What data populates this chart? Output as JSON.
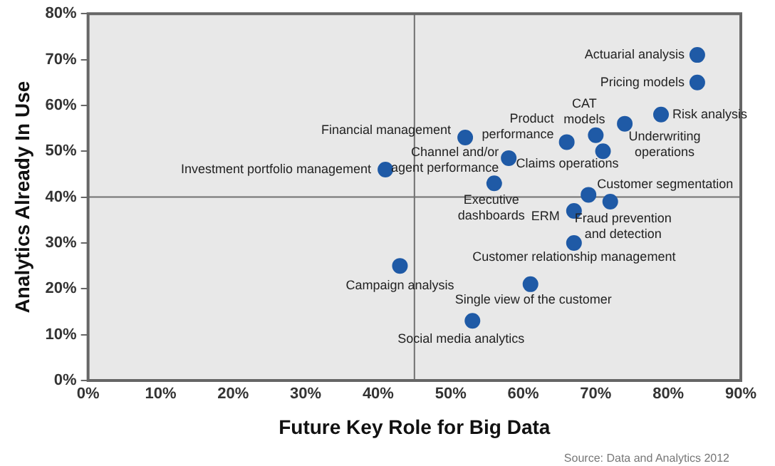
{
  "chart_data": {
    "type": "scatter",
    "xlabel": "Future Key Role for Big Data",
    "ylabel": "Analytics Already In Use",
    "x": [
      84,
      84,
      79,
      70,
      74,
      71,
      66,
      52,
      58,
      56,
      41,
      69,
      72,
      67,
      67,
      43,
      61,
      53
    ],
    "series": [
      {
        "color": "#1f5aa6",
        "values": [
          71,
          65,
          58,
          53.5,
          56,
          50,
          52,
          53,
          48.5,
          43,
          46,
          40.5,
          39,
          37,
          30,
          25,
          21,
          13
        ]
      }
    ],
    "annotations": [
      {
        "text": "Actuarial analysis",
        "x": 84,
        "y": 71
      },
      {
        "text": "Pricing models",
        "x": 84,
        "y": 65
      },
      {
        "text": "Risk analysis",
        "x": 79,
        "y": 58
      },
      {
        "text": "CAT models",
        "x": 70,
        "y": 53.5
      },
      {
        "text": "Underwriting operations",
        "x": 74,
        "y": 56
      },
      {
        "text": "Claims operations",
        "x": 71,
        "y": 50
      },
      {
        "text": "Product performance",
        "x": 66,
        "y": 52
      },
      {
        "text": "Financial management",
        "x": 52,
        "y": 53
      },
      {
        "text": "Channel and/or agent performance",
        "x": 58,
        "y": 48.5
      },
      {
        "text": "Executive dashboards",
        "x": 56,
        "y": 43
      },
      {
        "text": "Investment portfolio management",
        "x": 41,
        "y": 46
      },
      {
        "text": "Customer segmentation",
        "x": 69,
        "y": 40.5
      },
      {
        "text": "Fraud prevention and detection",
        "x": 72,
        "y": 39
      },
      {
        "text": "ERM",
        "x": 67,
        "y": 37
      },
      {
        "text": "Customer relationship management",
        "x": 67,
        "y": 30
      },
      {
        "text": "Campaign analysis",
        "x": 43,
        "y": 25
      },
      {
        "text": "Single view of the customer",
        "x": 61,
        "y": 21
      },
      {
        "text": "Social media analytics",
        "x": 53,
        "y": 13
      },
      "Source: Data and Analytics 2012"
    ],
    "xlim": [
      0,
      90
    ],
    "xticks": [
      {
        "value": 0,
        "label": "0%"
      },
      {
        "value": 10,
        "label": "10%"
      },
      {
        "value": 20,
        "label": "20%"
      },
      {
        "value": 30,
        "label": "30%"
      },
      {
        "value": 40,
        "label": "40%"
      },
      {
        "value": 50,
        "label": "50%"
      },
      {
        "value": 60,
        "label": "60%"
      },
      {
        "value": 70,
        "label": "70%"
      },
      {
        "value": 80,
        "label": "80%"
      },
      {
        "value": 90,
        "label": "90%"
      }
    ],
    "ylim": [
      0,
      80
    ],
    "yticks": [
      {
        "value": 0,
        "label": "0%"
      },
      {
        "value": 10,
        "label": "10%"
      },
      {
        "value": 20,
        "label": "20%"
      },
      {
        "value": 30,
        "label": "30%"
      },
      {
        "value": 40,
        "label": "40%"
      },
      {
        "value": 50,
        "label": "50%"
      },
      {
        "value": 60,
        "label": "60%"
      },
      {
        "value": 70,
        "label": "70%"
      },
      {
        "value": 80,
        "label": "80%"
      }
    ],
    "ref_lines": [
      {
        "axis": "x",
        "value": 45,
        "color": "#707070"
      },
      {
        "axis": "y",
        "value": 40,
        "color": "#707070"
      }
    ],
    "grid": false,
    "legend": false,
    "marker": "circle"
  }
}
